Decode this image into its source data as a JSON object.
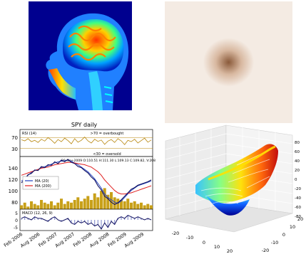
{
  "colors": {
    "brain_bg": "#00008f",
    "rings_light": "#f4ebe3",
    "rings_dark": "#6b3d22",
    "rsi_line": "#b8860b",
    "price_line": "#101060",
    "ma20_line": "#1f3fbf",
    "ma200_line": "#e02020",
    "volume_fill": "#c8a018",
    "macd_line": "#101060",
    "macd_hist": "#4050b0",
    "axis": "#000000"
  },
  "chart_data": [
    {
      "type": "image",
      "description_icon": "mri-head-jet-colormap"
    },
    {
      "type": "image",
      "description_icon": "concentric-rings-copper"
    },
    {
      "type": "line",
      "title": "SPY daily",
      "panels": [
        {
          "name": "RSI",
          "legend_text": "RSI (14)",
          "yticks": [
            "30",
            "70"
          ],
          "ylim": [
            0,
            100
          ],
          "annotations": [
            ">70 = overbought",
            "<30 = oversold"
          ],
          "values": [
            62,
            58,
            66,
            55,
            60,
            52,
            64,
            57,
            70,
            61,
            49,
            63,
            55,
            68,
            59,
            47,
            66,
            53,
            60,
            72,
            58,
            50,
            64,
            56,
            61,
            45,
            57,
            63,
            52,
            66,
            58,
            44,
            60,
            55,
            64,
            50,
            59,
            68,
            53,
            61
          ]
        },
        {
          "name": "Price",
          "info_text": "29-Nov-2009 O:110.51 H:111.30 L:109.13 C:109.82, V:208",
          "yticks": [
            "80",
            "100",
            "120",
            "140"
          ],
          "ylim": [
            60,
            150
          ],
          "series": [
            {
              "name": "MA (20)",
              "values": [
                108,
                112,
                118,
                123,
                126,
                128,
                131,
                133,
                134,
                137,
                139,
                141,
                142,
                143,
                144,
                142,
                139,
                136,
                132,
                128,
                124,
                118,
                112,
                104,
                96,
                86,
                80,
                76,
                72,
                70,
                74,
                80,
                86,
                92,
                96,
                100,
                102,
                104,
                106,
                108
              ]
            },
            {
              "name": "MA (200)",
              "values": [
                118,
                120,
                122,
                124,
                126,
                128,
                130,
                131,
                132,
                134,
                136,
                137,
                138,
                139,
                140,
                140,
                139,
                138,
                137,
                136,
                134,
                132,
                128,
                124,
                118,
                110,
                104,
                98,
                92,
                88,
                86,
                86,
                87,
                88,
                90,
                92,
                94,
                96,
                98,
                100
              ]
            },
            {
              "name": "Price",
              "values": [
                105,
                111,
                119,
                121,
                127,
                126,
                133,
                131,
                136,
                135,
                141,
                138,
                144,
                141,
                145,
                140,
                138,
                133,
                131,
                126,
                122,
                115,
                110,
                100,
                93,
                82,
                78,
                72,
                68,
                71,
                76,
                82,
                88,
                94,
                97,
                101,
                103,
                105,
                107,
                110
              ]
            }
          ],
          "volume": [
            3,
            5,
            2,
            6,
            4,
            3,
            7,
            5,
            4,
            6,
            3,
            5,
            8,
            4,
            6,
            5,
            7,
            9,
            6,
            8,
            10,
            7,
            12,
            9,
            14,
            16,
            11,
            13,
            9,
            8,
            7,
            6,
            8,
            5,
            6,
            4,
            5,
            3,
            4,
            3
          ]
        },
        {
          "name": "MACD",
          "legend_text": "MACD (12, 26, 9)",
          "yticks": [
            "5",
            "0",
            "-5"
          ],
          "ylim": [
            -7,
            7
          ],
          "values": [
            1,
            2,
            1,
            0,
            2,
            1,
            1,
            0,
            -1,
            1,
            2,
            0,
            -1,
            0,
            1,
            -2,
            -3,
            -1,
            -2,
            -1,
            -3,
            -2,
            -4,
            -3,
            -6,
            -2,
            -5,
            -1,
            -3,
            1,
            2,
            1,
            3,
            2,
            1,
            2,
            1,
            0,
            1,
            0
          ]
        }
      ],
      "xtick_labels": [
        "Feb 2006",
        "Aug 2006",
        "Feb 2007",
        "Aug 2007",
        "Feb 2008",
        "Aug 2008",
        "Feb 2009",
        "Aug 2009"
      ]
    },
    {
      "type": "surface3d",
      "xticks": [
        "-20",
        "-10",
        "0",
        "10",
        "20"
      ],
      "yticks": [
        "-20",
        "-10",
        "0",
        "10",
        "20"
      ],
      "zticks": [
        "80",
        "60",
        "40",
        "20",
        "0",
        "-20",
        "-40",
        "-60",
        "-80"
      ]
    }
  ]
}
